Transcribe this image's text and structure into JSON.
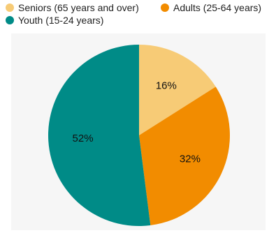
{
  "chart_data": {
    "type": "pie",
    "title": "",
    "categories": [
      "Seniors (65 years and over)",
      "Adults (25-64 years)",
      "Youth (15-24 years)"
    ],
    "values": [
      16,
      32,
      52
    ],
    "value_labels": [
      "16%",
      "32%",
      "52%"
    ],
    "colors": [
      "#f7cb76",
      "#f28c00",
      "#008b87"
    ],
    "start_angle_deg": 0,
    "direction": "clockwise",
    "legend_position": "top-left"
  }
}
